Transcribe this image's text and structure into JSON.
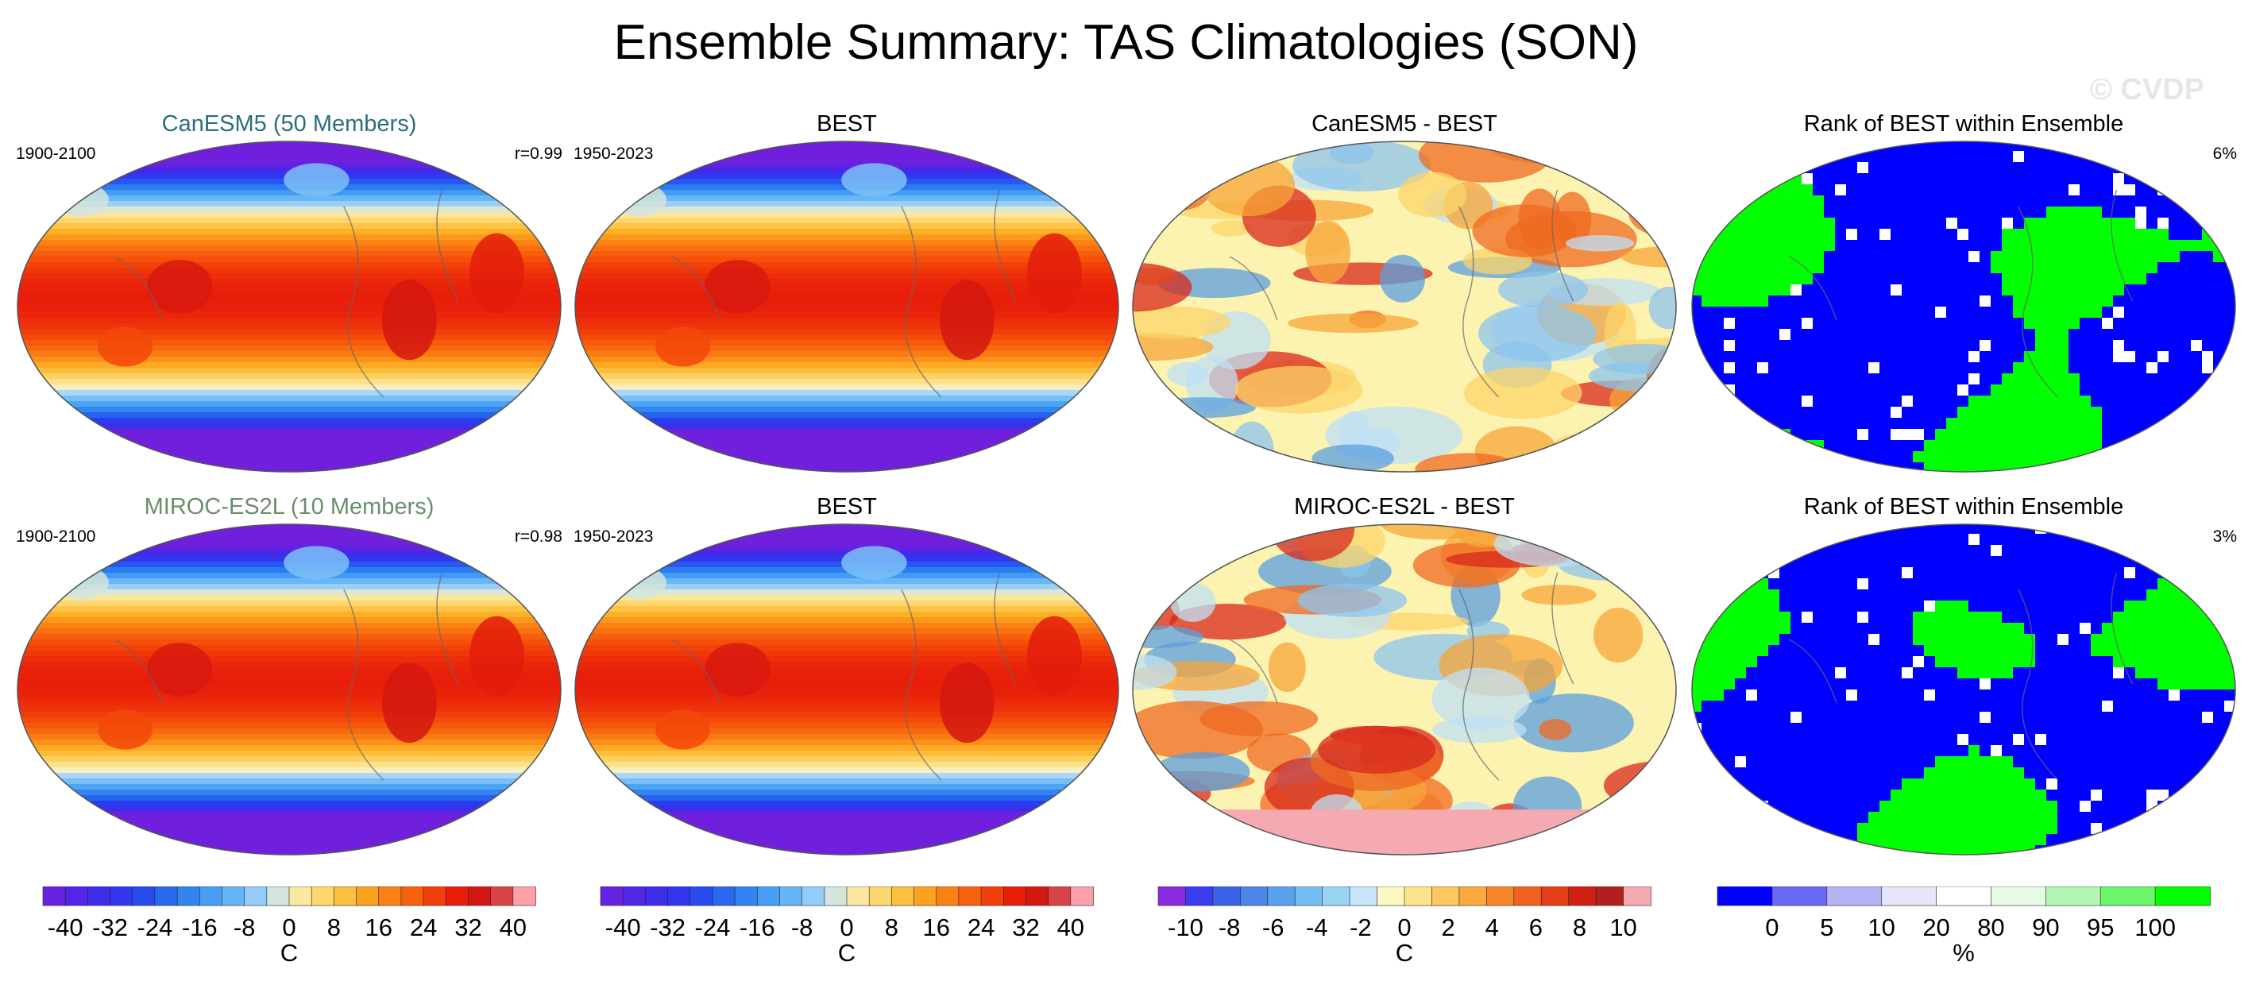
{
  "title": "Ensemble Summary: TAS Climatologies (SON)",
  "watermark": "© CVDP",
  "colors": {
    "canesm5_title": "#2b6e7e",
    "miroc_title": "#6b8e6b",
    "rank_low": "#0000ff",
    "rank_high": "#00ff00"
  },
  "rows": [
    {
      "panels": [
        {
          "title": "CanESM5 (50 Members)",
          "left": "1900-2100",
          "right": "r=0.99",
          "kind": "clim"
        },
        {
          "title": "BEST",
          "left": "1950-2023",
          "right": "",
          "kind": "clim"
        },
        {
          "title": "CanESM5 - BEST",
          "left": "",
          "right": "",
          "kind": "diff"
        },
        {
          "title": "Rank of BEST within Ensemble",
          "left": "",
          "right": "6%",
          "kind": "rank"
        }
      ]
    },
    {
      "panels": [
        {
          "title": "MIROC-ES2L (10 Members)",
          "left": "1900-2100",
          "right": "r=0.98",
          "kind": "clim"
        },
        {
          "title": "BEST",
          "left": "1950-2023",
          "right": "",
          "kind": "clim"
        },
        {
          "title": "MIROC-ES2L - BEST",
          "left": "",
          "right": "",
          "kind": "diff"
        },
        {
          "title": "Rank of BEST within Ensemble",
          "left": "",
          "right": "3%",
          "kind": "rank"
        }
      ]
    }
  ],
  "colorbars": [
    {
      "ticks": [
        "-40",
        "-32",
        "-24",
        "-16",
        "-8",
        "0",
        "8",
        "16",
        "24",
        "32",
        "40"
      ],
      "unit": "C"
    },
    {
      "ticks": [
        "-40",
        "-32",
        "-24",
        "-16",
        "-8",
        "0",
        "8",
        "16",
        "24",
        "32",
        "40"
      ],
      "unit": "C"
    },
    {
      "ticks": [
        "-10",
        "-8",
        "-6",
        "-4",
        "-2",
        "0",
        "2",
        "4",
        "6",
        "8",
        "10"
      ],
      "unit": "C"
    },
    {
      "ticks": [
        "0",
        "5",
        "10",
        "20",
        "80",
        "90",
        "95",
        "100"
      ],
      "unit": "%"
    }
  ],
  "chart_data": {
    "type": "heatmap",
    "title": "Ensemble Summary: TAS Climatologies (SON)",
    "panels": [
      {
        "title": "CanESM5 (50 Members)",
        "period": "1900-2100",
        "pattern_correlation": "r=0.99",
        "units": "C",
        "range": [
          -40,
          40
        ]
      },
      {
        "title": "BEST",
        "period": "1950-2023",
        "units": "C",
        "range": [
          -40,
          40
        ]
      },
      {
        "title": "CanESM5 - BEST",
        "units": "C",
        "range": [
          -10,
          10
        ]
      },
      {
        "title": "Rank of BEST within Ensemble",
        "units": "%",
        "summary": "6%"
      },
      {
        "title": "MIROC-ES2L (10 Members)",
        "period": "1900-2100",
        "pattern_correlation": "r=0.98",
        "units": "C",
        "range": [
          -40,
          40
        ]
      },
      {
        "title": "BEST",
        "period": "1950-2023",
        "units": "C",
        "range": [
          -40,
          40
        ]
      },
      {
        "title": "MIROC-ES2L - BEST",
        "units": "C",
        "range": [
          -10,
          10
        ]
      },
      {
        "title": "Rank of BEST within Ensemble",
        "units": "%",
        "summary": "3%"
      }
    ],
    "colorbar_levels": {
      "climatology": [
        -40,
        -36,
        -32,
        -28,
        -24,
        -20,
        -16,
        -12,
        -8,
        -4,
        0,
        4,
        8,
        12,
        16,
        20,
        24,
        28,
        32,
        36,
        40
      ],
      "difference": [
        -10,
        -9,
        -8,
        -7,
        -6,
        -5,
        -4,
        -3,
        -2,
        -1,
        0,
        1,
        2,
        3,
        4,
        5,
        6,
        7,
        8,
        9,
        10
      ],
      "rank": [
        0,
        5,
        10,
        20,
        80,
        90,
        95,
        100
      ]
    }
  }
}
